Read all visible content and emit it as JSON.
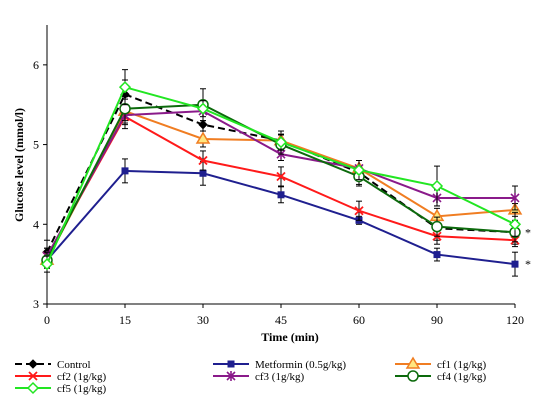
{
  "chart_data": {
    "type": "line",
    "xlabel": "Time (min)",
    "ylabel": "Glucose level (mmol/l)",
    "x": [
      0,
      15,
      30,
      45,
      60,
      90,
      120
    ],
    "ylim": [
      3,
      6.5
    ],
    "yticks": [
      3,
      4,
      5,
      6
    ],
    "series": [
      {
        "name": "Control",
        "color": "#000000",
        "marker": "diamond",
        "dash": true,
        "values": [
          3.65,
          5.63,
          5.25,
          5.05,
          4.65,
          3.95,
          3.9
        ],
        "errors": [
          0.15,
          0.18,
          0.2,
          0.12,
          0.15,
          0.15,
          0.15
        ]
      },
      {
        "name": "Metformin (0.5g/kg)",
        "color": "#1f1f8f",
        "marker": "square",
        "values": [
          3.55,
          4.67,
          4.64,
          4.37,
          4.05,
          3.62,
          3.5
        ],
        "errors": [
          0.1,
          0.15,
          0.15,
          0.1,
          0.05,
          0.08,
          0.15
        ]
      },
      {
        "name": "cf1 (1g/kg)",
        "color": "#f07d22",
        "marker": "triangle",
        "values": [
          3.55,
          5.42,
          5.07,
          5.05,
          4.7,
          4.1,
          4.18
        ],
        "errors": [
          0.1,
          0.15,
          0.1,
          0.08,
          0.1,
          0.1,
          0.08
        ]
      },
      {
        "name": "cf2 (1g/kg)",
        "color": "#ff1a1a",
        "marker": "x",
        "values": [
          3.6,
          5.35,
          4.8,
          4.6,
          4.17,
          3.85,
          3.8
        ],
        "errors": [
          0.1,
          0.15,
          0.12,
          0.12,
          0.12,
          0.1,
          0.08
        ]
      },
      {
        "name": "cf3 (1g/kg)",
        "color": "#8a1a8a",
        "marker": "star",
        "values": [
          3.6,
          5.37,
          5.42,
          4.88,
          4.7,
          4.33,
          4.33
        ],
        "errors": [
          0.1,
          0.12,
          0.12,
          0.08,
          0.1,
          0.1,
          0.15
        ]
      },
      {
        "name": "cf4 (1g/kg)",
        "color": "#0c6a0c",
        "marker": "circle",
        "values": [
          3.55,
          5.45,
          5.5,
          5.0,
          4.6,
          3.97,
          3.9
        ],
        "errors": [
          0.1,
          0.15,
          0.2,
          0.12,
          0.12,
          0.12,
          0.12
        ]
      },
      {
        "name": "cf5 (1g/kg)",
        "color": "#22e622",
        "marker": "diamond-open",
        "values": [
          3.5,
          5.72,
          5.45,
          5.03,
          4.68,
          4.48,
          4.0
        ],
        "errors": [
          0.1,
          0.22,
          0.1,
          0.1,
          0.12,
          0.25,
          0.15
        ]
      }
    ],
    "annotations": [
      {
        "text": "*",
        "x": 120,
        "y": 3.9
      },
      {
        "text": "*",
        "x": 120,
        "y": 3.5
      }
    ],
    "legend": {
      "position": "bottom",
      "columns": 3
    }
  }
}
